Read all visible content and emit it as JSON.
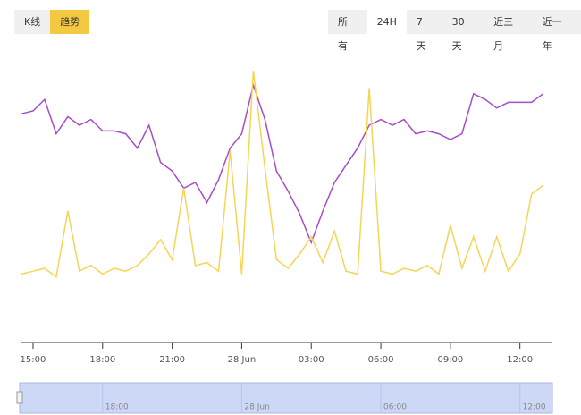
{
  "chart_data": {
    "type": "line",
    "view_buttons": [
      "K线",
      "趋势"
    ],
    "view_active": 1,
    "range_buttons": [
      "所有",
      "24H",
      "7天",
      "30天",
      "近三月",
      "近一年"
    ],
    "range_active": 1,
    "x": [
      -0.5,
      0,
      0.5,
      1,
      1.5,
      2,
      2.5,
      3,
      3.5,
      4,
      4.5,
      5,
      5.5,
      6,
      6.5,
      7,
      7.5,
      8,
      8.5,
      9,
      9.5,
      10,
      10.5,
      11,
      11.5,
      12,
      12.5,
      13,
      13.5,
      14,
      14.5,
      15,
      15.5,
      16,
      16.5,
      17,
      17.5,
      18,
      18.5,
      19,
      19.5,
      20,
      20.5,
      21,
      21.5,
      22
    ],
    "series": [
      {
        "color": "#a64dc9",
        "values": [
          79,
          80,
          84,
          72,
          78,
          75,
          77,
          73,
          73,
          72,
          67,
          75,
          62,
          59,
          53,
          55,
          48,
          56,
          67,
          72,
          89,
          77,
          59,
          52,
          44,
          34,
          45,
          55,
          61,
          67,
          75,
          77,
          75,
          77,
          72,
          73,
          72,
          70,
          72,
          86,
          84,
          81,
          83,
          83,
          83,
          86
        ]
      },
      {
        "color": "#f5d553",
        "values": [
          23,
          24,
          25,
          22,
          45,
          24,
          26,
          23,
          25,
          24,
          26,
          30,
          35,
          28,
          53,
          26,
          27,
          24,
          66,
          23,
          94,
          60,
          28,
          25,
          30,
          36,
          27,
          38,
          24,
          23,
          88,
          24,
          23,
          25,
          24,
          26,
          23,
          40,
          25,
          36,
          24,
          36,
          24,
          30,
          51,
          54
        ]
      }
    ],
    "xlim": [
      -0.5,
      22.4
    ],
    "ylim": [
      0,
      100
    ],
    "xticks": [
      {
        "value": 0,
        "label": "15:00"
      },
      {
        "value": 3,
        "label": "18:00"
      },
      {
        "value": 6,
        "label": "21:00"
      },
      {
        "value": 9,
        "label": "28 Jun"
      },
      {
        "value": 12,
        "label": "03:00"
      },
      {
        "value": 15,
        "label": "06:00"
      },
      {
        "value": 18,
        "label": "09:00"
      },
      {
        "value": 21,
        "label": "12:00"
      }
    ],
    "navigator_ticks": [
      {
        "value": 3,
        "label": "18:00"
      },
      {
        "value": 9,
        "label": "28 Jun"
      },
      {
        "value": 15,
        "label": "06:00"
      },
      {
        "value": 21,
        "label": "12:00"
      }
    ]
  }
}
